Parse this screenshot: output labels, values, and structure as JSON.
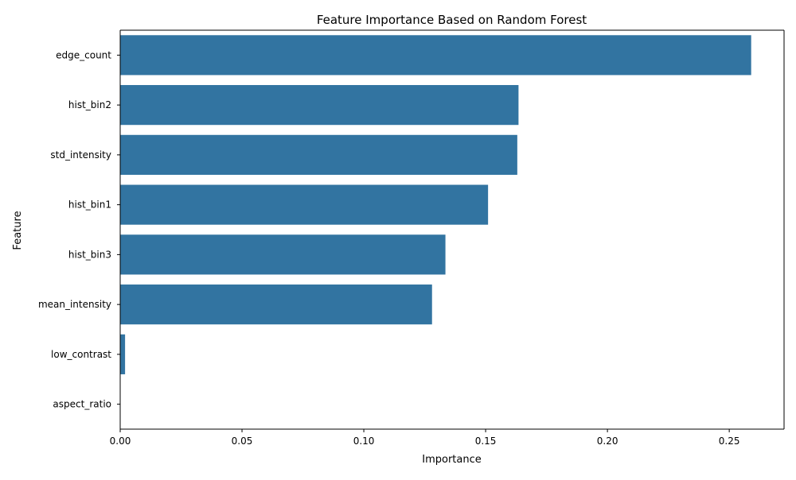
{
  "chart_data": {
    "type": "bar",
    "orientation": "horizontal",
    "title": "Feature Importance Based on Random Forest",
    "xlabel": "Importance",
    "ylabel": "Feature",
    "categories": [
      "edge_count",
      "hist_bin2",
      "std_intensity",
      "hist_bin1",
      "hist_bin3",
      "mean_intensity",
      "low_contrast",
      "aspect_ratio"
    ],
    "values": [
      0.259,
      0.1635,
      0.163,
      0.151,
      0.1335,
      0.128,
      0.002,
      0.0
    ],
    "xlim": [
      0,
      0.2725
    ],
    "xticks": [
      0.0,
      0.05,
      0.1,
      0.15,
      0.2,
      0.25
    ],
    "xtick_labels": [
      "0.00",
      "0.05",
      "0.10",
      "0.15",
      "0.20",
      "0.25"
    ],
    "grid": false,
    "bar_color": "#3274a1"
  }
}
